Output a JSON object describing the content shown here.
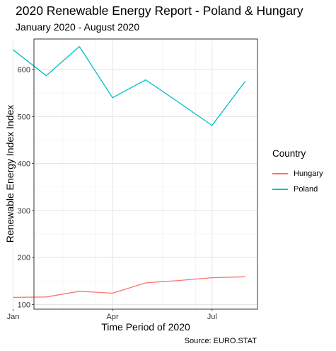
{
  "chart_data": {
    "type": "line",
    "title": "2020 Renewable Energy Report - Poland & Hungary",
    "subtitle": "January 2020 - August 2020",
    "xlabel": "Time Period of 2020",
    "ylabel": "Renewable Energy Index Index",
    "caption": "Source: EURO.STAT",
    "x": [
      "2020-01",
      "2020-02",
      "2020-03",
      "2020-04",
      "2020-05",
      "2020-06",
      "2020-07",
      "2020-08"
    ],
    "xticks": [
      "Jan",
      "Apr",
      "Jul"
    ],
    "yticks": [
      "100",
      "200",
      "300",
      "400",
      "500",
      "600"
    ],
    "ylim": [
      90,
      665
    ],
    "grid": true,
    "legend": {
      "title": "Country",
      "position": "right"
    },
    "series": [
      {
        "name": "Hungary",
        "color": "#F8766D",
        "values": [
          115,
          116,
          128,
          124,
          146,
          151,
          157,
          159
        ]
      },
      {
        "name": "Poland",
        "color": "#00BFC4",
        "values": [
          642,
          587,
          649,
          540,
          578,
          530,
          481,
          575
        ]
      }
    ]
  }
}
